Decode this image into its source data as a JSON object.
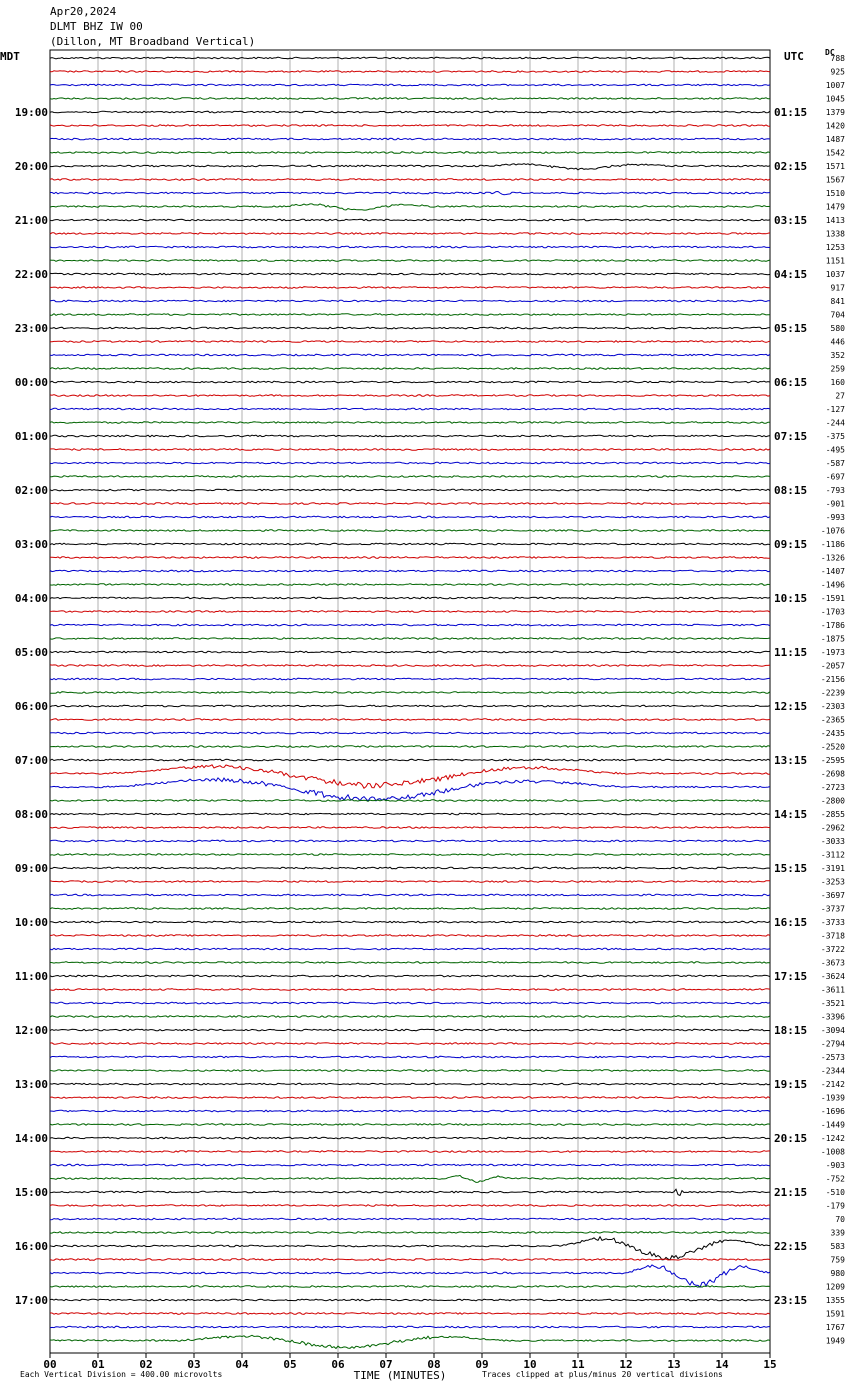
{
  "header": {
    "date": "Apr20,2024",
    "station": "DLMT BHZ IW 00",
    "location": "(Dillon, MT Broadband Vertical)"
  },
  "left_timezone": "MDT",
  "right_timezone": "UTC",
  "dc_label": "DC",
  "footer": {
    "scale_note": "Each Vertical Division = 400.00 microvolts",
    "clip_note": "Traces clipped at plus/minus 20 vertical divisions",
    "xlabel": "TIME (MINUTES)"
  },
  "colors": {
    "trace_cycle": [
      "#000000",
      "#d00000",
      "#0000cc",
      "#006400"
    ],
    "grid": "#b0b0b0"
  },
  "chart_data": {
    "type": "line",
    "xlabel": "TIME (MINUTES)",
    "xlim": [
      0,
      15
    ],
    "x_ticks": [
      "00",
      "01",
      "02",
      "03",
      "04",
      "05",
      "06",
      "07",
      "08",
      "09",
      "10",
      "11",
      "12",
      "13",
      "14",
      "15"
    ],
    "rows_per_hour": 4,
    "minutes_per_row": 15,
    "row_count": 96,
    "left_hour_labels": [
      "19:00",
      "20:00",
      "21:00",
      "22:00",
      "23:00",
      "00:00",
      "01:00",
      "02:00",
      "03:00",
      "04:00",
      "05:00",
      "06:00",
      "07:00",
      "08:00",
      "09:00",
      "10:00",
      "11:00",
      "12:00",
      "13:00",
      "14:00",
      "15:00",
      "16:00",
      "17:00"
    ],
    "right_hour_labels": [
      "01:15",
      "02:15",
      "03:15",
      "04:15",
      "05:15",
      "06:15",
      "07:15",
      "08:15",
      "09:15",
      "10:15",
      "11:15",
      "12:15",
      "13:15",
      "14:15",
      "15:15",
      "16:15",
      "17:15",
      "18:15",
      "19:15",
      "20:15",
      "21:15",
      "22:15",
      "23:15"
    ],
    "dc_offsets": [
      788,
      925,
      1007,
      1045,
      1379,
      1420,
      1487,
      1542,
      1571,
      1567,
      1510,
      1479,
      1413,
      1338,
      1253,
      1151,
      1037,
      917,
      841,
      704,
      580,
      446,
      352,
      259,
      160,
      27,
      -127,
      -244,
      -375,
      -495,
      -587,
      -697,
      -793,
      -901,
      -993,
      -1076,
      -1186,
      -1326,
      -1407,
      -1496,
      -1591,
      -1703,
      -1786,
      -1875,
      -1973,
      -2057,
      -2156,
      -2239,
      -2303,
      -2365,
      -2435,
      -2520,
      -2595,
      -2698,
      -2723,
      -2800,
      -2855,
      -2962,
      -3033,
      -3112,
      -3191,
      -3253,
      -3697,
      -3737,
      -3733,
      -3718,
      -3722,
      -3673,
      -3624,
      -3611,
      -3521,
      -3396,
      -3094,
      -2794,
      -2573,
      -2344,
      -2142,
      -1939,
      -1696,
      -1449,
      -1242,
      -1008,
      -903,
      -752,
      -510,
      -179,
      70,
      339,
      583,
      759,
      980,
      1209,
      1355,
      1591,
      1767,
      1949
    ],
    "events": [
      {
        "row": 8,
        "from": 8.9,
        "to": 13,
        "amp": 5
      },
      {
        "row": 10,
        "from": 9.2,
        "to": 9.8,
        "amp": 4
      },
      {
        "row": 11,
        "from": 4.7,
        "to": 8,
        "amp": 6
      },
      {
        "row": 53,
        "from": 1.0,
        "to": 12.0,
        "amp": 20
      },
      {
        "row": 54,
        "from": 1.0,
        "to": 12.0,
        "amp": 20
      },
      {
        "row": 83,
        "from": 8.2,
        "to": 9.6,
        "amp": 6
      },
      {
        "row": 84,
        "from": 13.0,
        "to": 13.2,
        "amp": 8
      },
      {
        "row": 88,
        "from": 10.5,
        "to": 15.0,
        "amp": 20
      },
      {
        "row": 90,
        "from": 11.9,
        "to": 15.0,
        "amp": 20
      },
      {
        "row": 95,
        "from": 2.5,
        "to": 9.5,
        "amp": 12
      }
    ]
  }
}
